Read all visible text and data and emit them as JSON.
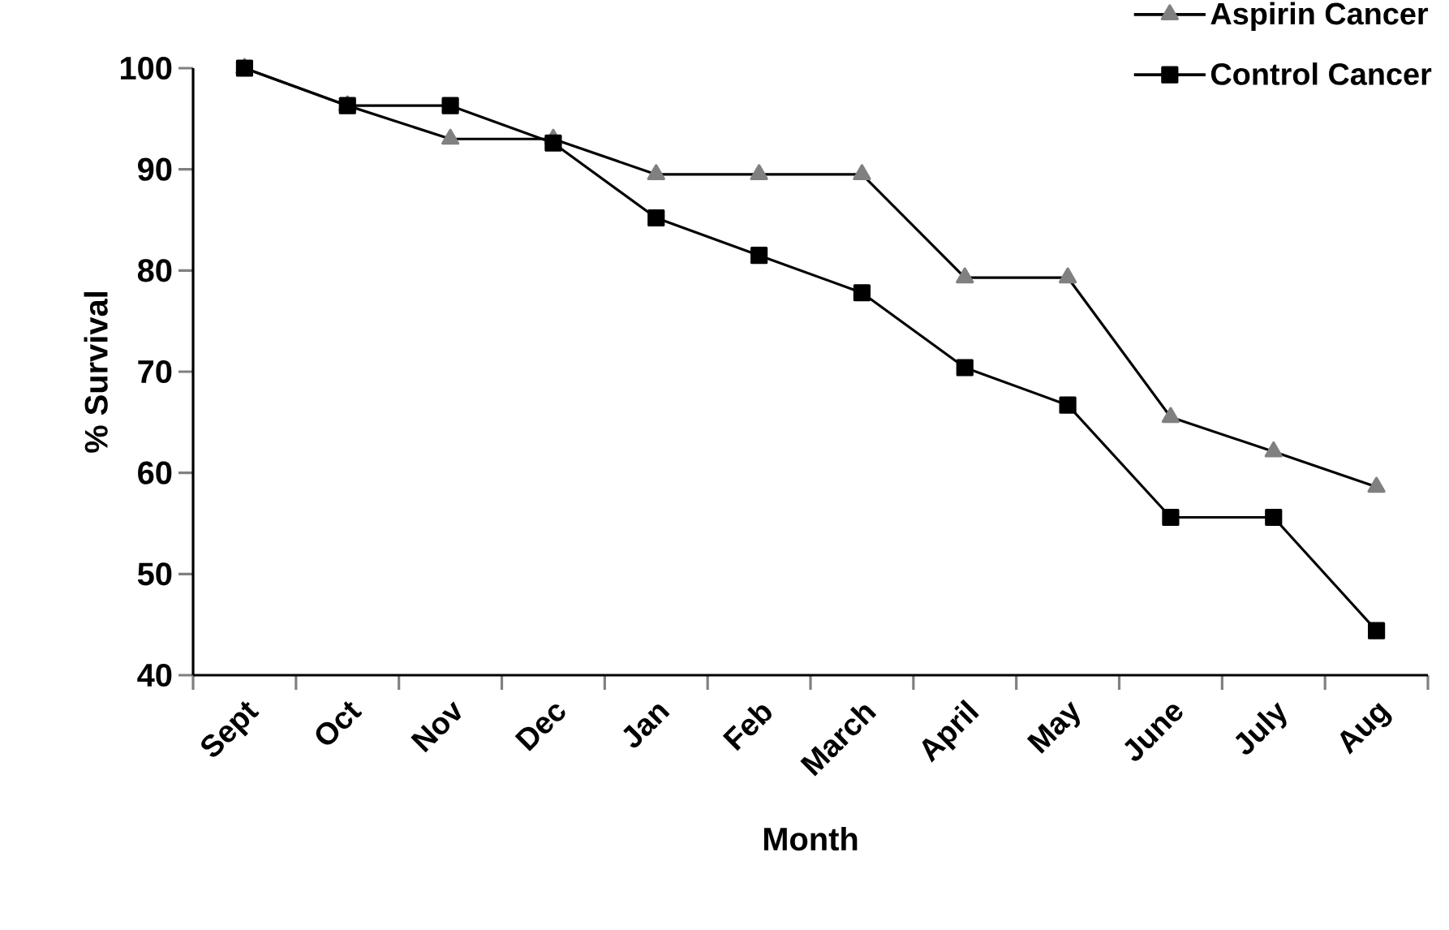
{
  "chart_data": {
    "type": "line",
    "xlabel": "Month",
    "ylabel": "% Survival",
    "categories": [
      "Sept",
      "Oct",
      "Nov",
      "Dec",
      "Jan",
      "Feb",
      "March",
      "April",
      "May",
      "June",
      "July",
      "Aug"
    ],
    "series": [
      {
        "name": "Aspirin Cancer",
        "color": "#808080",
        "marker": "triangle",
        "values": [
          100,
          96.3,
          93,
          93,
          89.5,
          89.5,
          89.5,
          79.3,
          79.3,
          65.5,
          62.1,
          58.6
        ]
      },
      {
        "name": "Control Cancer",
        "color": "#000000",
        "marker": "square",
        "values": [
          100,
          96.3,
          96.3,
          92.6,
          85.2,
          81.5,
          77.8,
          70.4,
          66.7,
          55.6,
          55.6,
          44.4
        ]
      }
    ],
    "ylim": [
      40,
      100
    ],
    "yticks": [
      40,
      50,
      60,
      70,
      80,
      90,
      100
    ],
    "grid": false,
    "legend": "top right",
    "line_style": "solid"
  }
}
